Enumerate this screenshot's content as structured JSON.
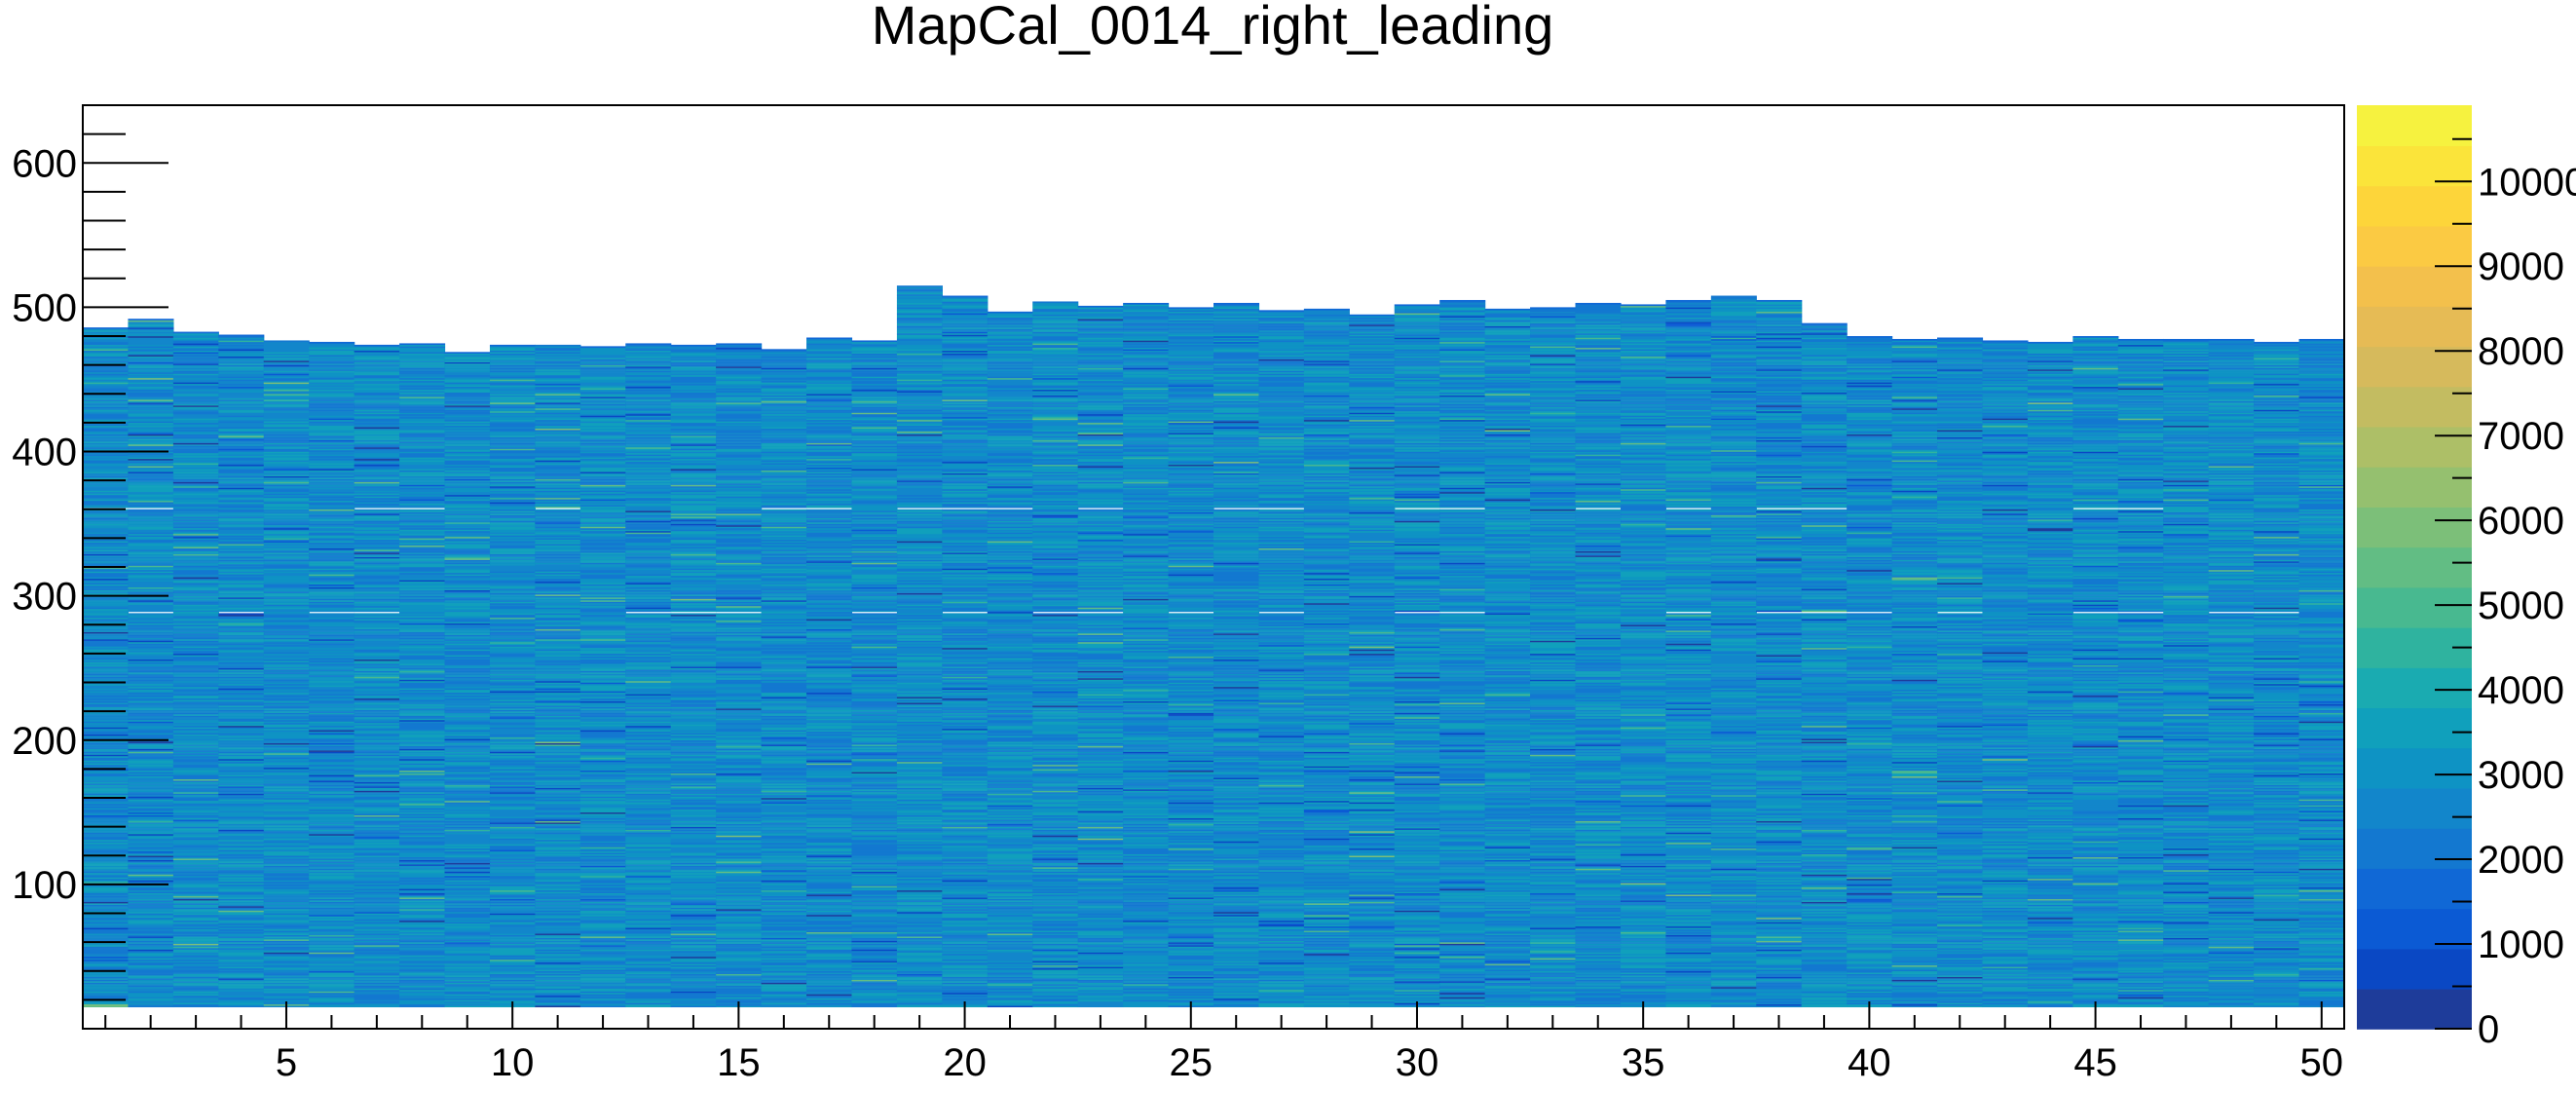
{
  "chart_data": {
    "type": "heatmap",
    "title": "MapCal_0014_right_leading",
    "xlabel": "",
    "ylabel": "",
    "xlim": [
      0.5,
      50.5
    ],
    "ylim": [
      0,
      640
    ],
    "x_ticks": [
      5,
      10,
      15,
      20,
      25,
      30,
      35,
      40,
      45,
      50
    ],
    "x_tick_labels": [
      "5",
      "10",
      "15",
      "20",
      "25",
      "30",
      "35",
      "40",
      "45",
      "50"
    ],
    "y_ticks": [
      100,
      200,
      300,
      400,
      500,
      600
    ],
    "y_tick_labels": [
      "100",
      "200",
      "300",
      "400",
      "500",
      "600"
    ],
    "z_range": [
      0,
      10900
    ],
    "z_ticks": [
      0,
      1000,
      2000,
      3000,
      4000,
      5000,
      6000,
      7000,
      8000,
      9000,
      10000
    ],
    "z_tick_labels": [
      "0",
      "1000",
      "2000",
      "3000",
      "4000",
      "5000",
      "6000",
      "7000",
      "8000",
      "9000",
      "10000"
    ],
    "palette": [
      "#1e3c9a",
      "#0a48c4",
      "#0b5ad4",
      "#1068d6",
      "#1378d0",
      "#1286cb",
      "#0e93c4",
      "#10a0bc",
      "#1aabb1",
      "#2fb39f",
      "#48b990",
      "#62bd84",
      "#7cbf79",
      "#95c06f",
      "#adbf67",
      "#c3bc61",
      "#d6ba5c",
      "#e6bb55",
      "#f3c04c",
      "#fbca43",
      "#fdd53a",
      "#fbe43a",
      "#f6f23f"
    ],
    "column_heights": [
      486,
      492,
      483,
      481,
      477,
      476,
      474,
      475,
      469,
      474,
      474,
      473,
      475,
      474,
      475,
      471,
      479,
      477,
      515,
      508,
      497,
      504,
      501,
      503,
      500,
      503,
      498,
      499,
      495,
      502,
      505,
      499,
      500,
      503,
      502,
      505,
      508,
      505,
      489,
      480,
      478,
      479,
      477,
      476,
      480,
      478,
      478,
      478,
      476,
      478
    ],
    "y_min_filled": 15,
    "typical_count": 2800,
    "white_lines_y": [
      288,
      360
    ]
  }
}
